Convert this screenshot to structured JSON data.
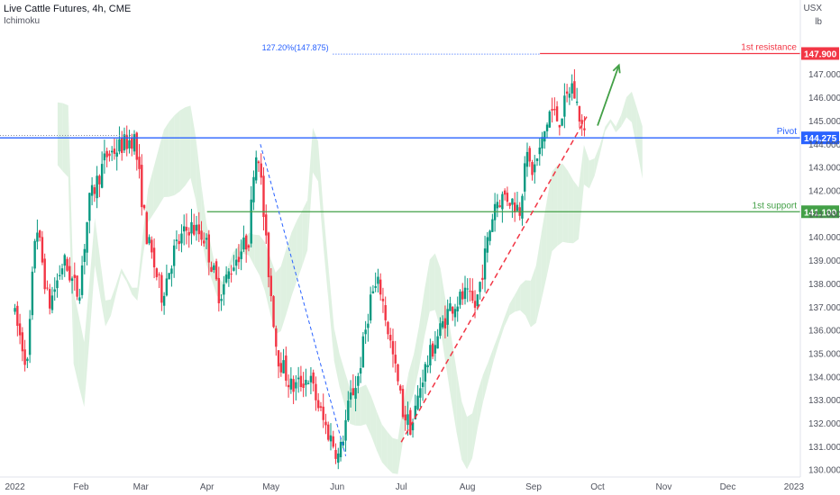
{
  "header": {
    "title": "Live Cattle Futures, 4h, CME",
    "indicator": "Ichimoku",
    "unit_top": "USX",
    "unit_bottom": "lb"
  },
  "colors": {
    "up": "#089981",
    "down": "#f23645",
    "pivot": "#2962ff",
    "support": "#43a047",
    "resistance": "#f23645",
    "cloud_up": "#d9efdc",
    "cloud_down": "#fbdcdc",
    "fib": "#2962ff"
  },
  "chart_data": {
    "type": "candlestick",
    "x_ticks": [
      "2022",
      "Feb",
      "Mar",
      "Apr",
      "May",
      "Jun",
      "Jul",
      "Aug",
      "Sep",
      "Oct",
      "Nov",
      "Dec",
      "2023"
    ],
    "y_ticks": [
      "130.000",
      "131.000",
      "132.000",
      "133.000",
      "134.000",
      "135.000",
      "136.000",
      "137.000",
      "138.000",
      "139.000",
      "140.000",
      "141.000",
      "142.000",
      "143.000",
      "144.000",
      "145.000",
      "146.000",
      "147.000"
    ],
    "ylim": [
      129.7,
      150.2
    ],
    "levels": [
      {
        "name": "1st resistance",
        "value": 147.9,
        "label": "147.900",
        "type": "resistance"
      },
      {
        "name": "Pivot",
        "value": 144.275,
        "label": "144.275",
        "type": "pivot"
      },
      {
        "name": "1st support",
        "value": 141.1,
        "label": "141.100",
        "type": "support"
      }
    ],
    "fib_label": "127.20%(147.875)",
    "price_path": [
      [
        "2022-01-01",
        137.0
      ],
      [
        "2022-01-08",
        134.5
      ],
      [
        "2022-01-12",
        140.8
      ],
      [
        "2022-01-18",
        137.0
      ],
      [
        "2022-01-25",
        139.0
      ],
      [
        "2022-02-01",
        137.5
      ],
      [
        "2022-02-06",
        141.5
      ],
      [
        "2022-02-14",
        143.5
      ],
      [
        "2022-02-22",
        144.0
      ],
      [
        "2022-02-27",
        144.3
      ],
      [
        "2022-03-05",
        140.0
      ],
      [
        "2022-03-12",
        137.5
      ],
      [
        "2022-03-18",
        139.5
      ],
      [
        "2022-03-25",
        140.5
      ],
      [
        "2022-04-01",
        140.0
      ],
      [
        "2022-04-08",
        137.5
      ],
      [
        "2022-04-15",
        139.0
      ],
      [
        "2022-04-22",
        140.0
      ],
      [
        "2022-04-24",
        143.0
      ],
      [
        "2022-04-26",
        144.0
      ],
      [
        "2022-04-30",
        139.5
      ],
      [
        "2022-05-05",
        135.0
      ],
      [
        "2022-05-12",
        133.5
      ],
      [
        "2022-05-20",
        134.0
      ],
      [
        "2022-05-27",
        132.0
      ],
      [
        "2022-06-01",
        131.0
      ],
      [
        "2022-06-03",
        130.5
      ],
      [
        "2022-06-08",
        133.0
      ],
      [
        "2022-06-12",
        134.0
      ],
      [
        "2022-06-18",
        137.5
      ],
      [
        "2022-06-22",
        138.0
      ],
      [
        "2022-06-28",
        135.0
      ],
      [
        "2022-07-03",
        132.5
      ],
      [
        "2022-07-07",
        131.8
      ],
      [
        "2022-07-12",
        134.0
      ],
      [
        "2022-07-18",
        135.5
      ],
      [
        "2022-07-25",
        137.0
      ],
      [
        "2022-08-01",
        137.5
      ],
      [
        "2022-08-06",
        137.0
      ],
      [
        "2022-08-10",
        139.0
      ],
      [
        "2022-08-15",
        141.5
      ],
      [
        "2022-08-20",
        141.8
      ],
      [
        "2022-08-27",
        141.2
      ],
      [
        "2022-08-29",
        143.5
      ],
      [
        "2022-09-02",
        142.8
      ],
      [
        "2022-09-06",
        144.0
      ],
      [
        "2022-09-10",
        145.5
      ],
      [
        "2022-09-14",
        145.0
      ],
      [
        "2022-09-18",
        146.0
      ],
      [
        "2022-09-20",
        146.6
      ],
      [
        "2022-09-23",
        145.5
      ],
      [
        "2022-09-26",
        144.3
      ]
    ],
    "trendline": {
      "from": [
        "2022-07-01",
        131.2
      ],
      "to": [
        "2022-09-26",
        145.2
      ]
    },
    "projection_arrow": {
      "from": [
        "2022-10-01",
        144.8
      ],
      "to": [
        "2022-10-11",
        147.4
      ]
    },
    "fib_line": {
      "from": [
        "2022-04-26",
        144.0
      ],
      "to": [
        "2022-06-05",
        130.6
      ]
    }
  }
}
